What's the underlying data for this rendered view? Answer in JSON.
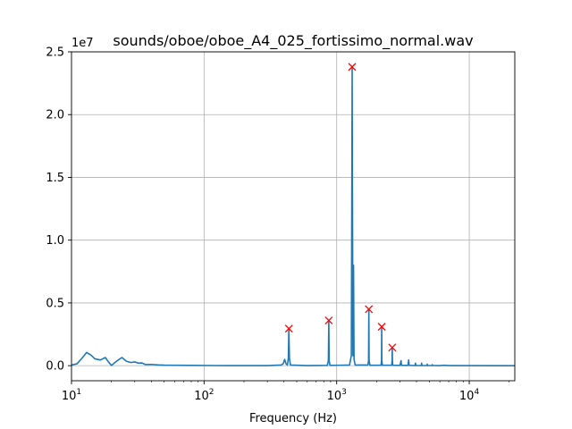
{
  "chart_data": {
    "type": "line",
    "title": "sounds/oboe/oboe_A4_025_fortissimo_normal.wav",
    "xlabel": "Frequency (Hz)",
    "ylabel": "",
    "x_scale": "log",
    "xlim": [
      10,
      22050
    ],
    "ylim": [
      -1200000,
      25000000
    ],
    "y_offset_label": "1e7",
    "grid": true,
    "x_major_ticks": [
      {
        "value": 10,
        "base": "10",
        "exp": "1"
      },
      {
        "value": 100,
        "base": "10",
        "exp": "2"
      },
      {
        "value": 1000,
        "base": "10",
        "exp": "3"
      },
      {
        "value": 10000,
        "base": "10",
        "exp": "4"
      }
    ],
    "y_ticks": [
      {
        "value": 0,
        "label": "0.0"
      },
      {
        "value": 5000000,
        "label": "0.5"
      },
      {
        "value": 10000000,
        "label": "1.0"
      },
      {
        "value": 15000000,
        "label": "1.5"
      },
      {
        "value": 20000000,
        "label": "2.0"
      },
      {
        "value": 25000000,
        "label": "2.5"
      }
    ],
    "colors": {
      "spectrum": "#1f77b4",
      "peaks": "#ff0000",
      "grid": "#b0b0b0"
    },
    "spectrum_points": [
      [
        10,
        50000
      ],
      [
        11,
        150000
      ],
      [
        12,
        600000
      ],
      [
        13,
        1050000
      ],
      [
        14,
        850000
      ],
      [
        15,
        550000
      ],
      [
        16.5,
        450000
      ],
      [
        18,
        650000
      ],
      [
        19,
        300000
      ],
      [
        20,
        20000
      ],
      [
        22,
        380000
      ],
      [
        24,
        650000
      ],
      [
        26,
        350000
      ],
      [
        28,
        250000
      ],
      [
        30,
        300000
      ],
      [
        32,
        200000
      ],
      [
        34,
        220000
      ],
      [
        36,
        90000
      ],
      [
        40,
        100000
      ],
      [
        45,
        60000
      ],
      [
        50,
        40000
      ],
      [
        60,
        30000
      ],
      [
        80,
        20000
      ],
      [
        120,
        10000
      ],
      [
        200,
        5000
      ],
      [
        300,
        5000
      ],
      [
        380,
        50000
      ],
      [
        395,
        150000
      ],
      [
        405,
        500000
      ],
      [
        415,
        150000
      ],
      [
        425,
        50000
      ],
      [
        432,
        600000
      ],
      [
        436,
        2900000
      ],
      [
        440,
        600000
      ],
      [
        448,
        50000
      ],
      [
        600,
        5000
      ],
      [
        850,
        20000
      ],
      [
        866,
        400000
      ],
      [
        872,
        3550000
      ],
      [
        878,
        400000
      ],
      [
        890,
        20000
      ],
      [
        1250,
        50000
      ],
      [
        1290,
        800000
      ],
      [
        1302,
        15000000
      ],
      [
        1308,
        23800000
      ],
      [
        1314,
        15000000
      ],
      [
        1326,
        800000
      ],
      [
        1340,
        8000000
      ],
      [
        1352,
        500000
      ],
      [
        1380,
        50000
      ],
      [
        1720,
        50000
      ],
      [
        1740,
        400000
      ],
      [
        1748,
        4450000
      ],
      [
        1756,
        400000
      ],
      [
        1780,
        30000
      ],
      [
        2160,
        30000
      ],
      [
        2180,
        400000
      ],
      [
        2186,
        3000000
      ],
      [
        2192,
        400000
      ],
      [
        2210,
        30000
      ],
      [
        2600,
        30000
      ],
      [
        2618,
        400000
      ],
      [
        2625,
        1400000
      ],
      [
        2632,
        400000
      ],
      [
        2650,
        30000
      ],
      [
        3000,
        20000
      ],
      [
        3060,
        400000
      ],
      [
        3080,
        20000
      ],
      [
        3450,
        20000
      ],
      [
        3490,
        450000
      ],
      [
        3520,
        20000
      ],
      [
        3900,
        10000
      ],
      [
        3930,
        200000
      ],
      [
        3960,
        10000
      ],
      [
        4350,
        10000
      ],
      [
        4370,
        200000
      ],
      [
        4400,
        10000
      ],
      [
        4800,
        10000
      ],
      [
        4820,
        120000
      ],
      [
        4850,
        10000
      ],
      [
        5250,
        10000
      ],
      [
        5260,
        80000
      ],
      [
        5290,
        10000
      ],
      [
        6000,
        5000
      ],
      [
        6500,
        30000
      ],
      [
        7000,
        5000
      ],
      [
        22050,
        0
      ]
    ],
    "peaks": [
      {
        "freq": 436,
        "value": 2950000
      },
      {
        "freq": 872,
        "value": 3600000
      },
      {
        "freq": 1308,
        "value": 23800000
      },
      {
        "freq": 1748,
        "value": 4500000
      },
      {
        "freq": 2186,
        "value": 3100000
      },
      {
        "freq": 2625,
        "value": 1450000
      }
    ]
  }
}
